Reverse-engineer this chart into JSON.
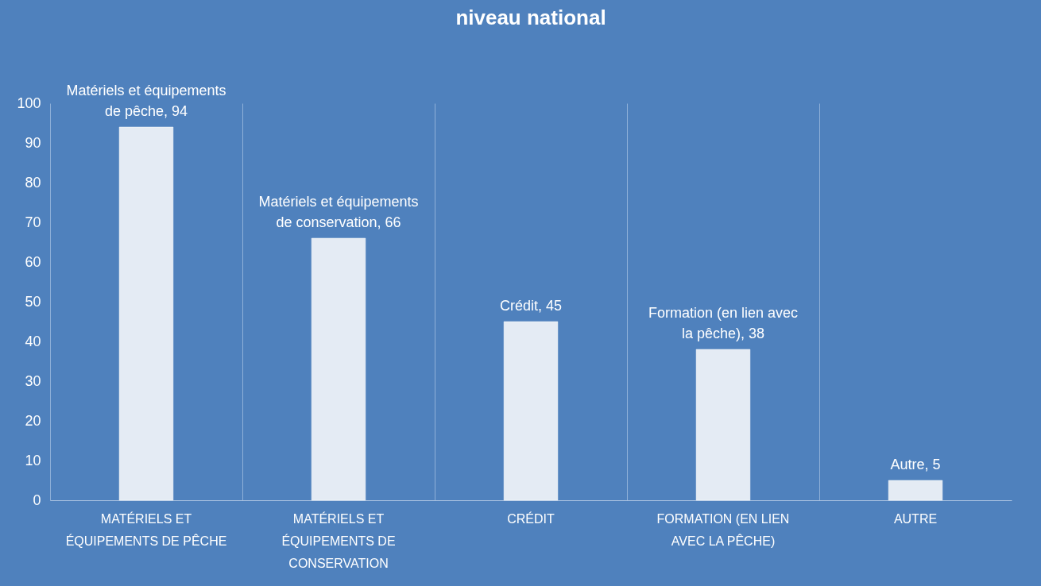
{
  "chart_data": {
    "type": "bar",
    "title": "niveau national",
    "categories": [
      "MATÉRIELS ET ÉQUIPEMENTS DE PÊCHE",
      "MATÉRIELS ET ÉQUIPEMENTS DE CONSERVATION",
      "CRÉDIT",
      "FORMATION (EN LIEN AVEC LA PÊCHE)",
      "AUTRE"
    ],
    "values": [
      94,
      66,
      45,
      38,
      5
    ],
    "value_labels": [
      "Matériels et équipements de pêche, 94",
      "Matériels et équipements de conservation, 66",
      "Crédit, 45",
      "Formation (en lien avec la pêche), 38",
      "Autre, 5"
    ],
    "color": "#e4ebf4",
    "ylim": [
      0,
      100
    ],
    "yticks": [
      0,
      10,
      20,
      30,
      40,
      50,
      60,
      70,
      80,
      90,
      100
    ],
    "grid": "x"
  }
}
